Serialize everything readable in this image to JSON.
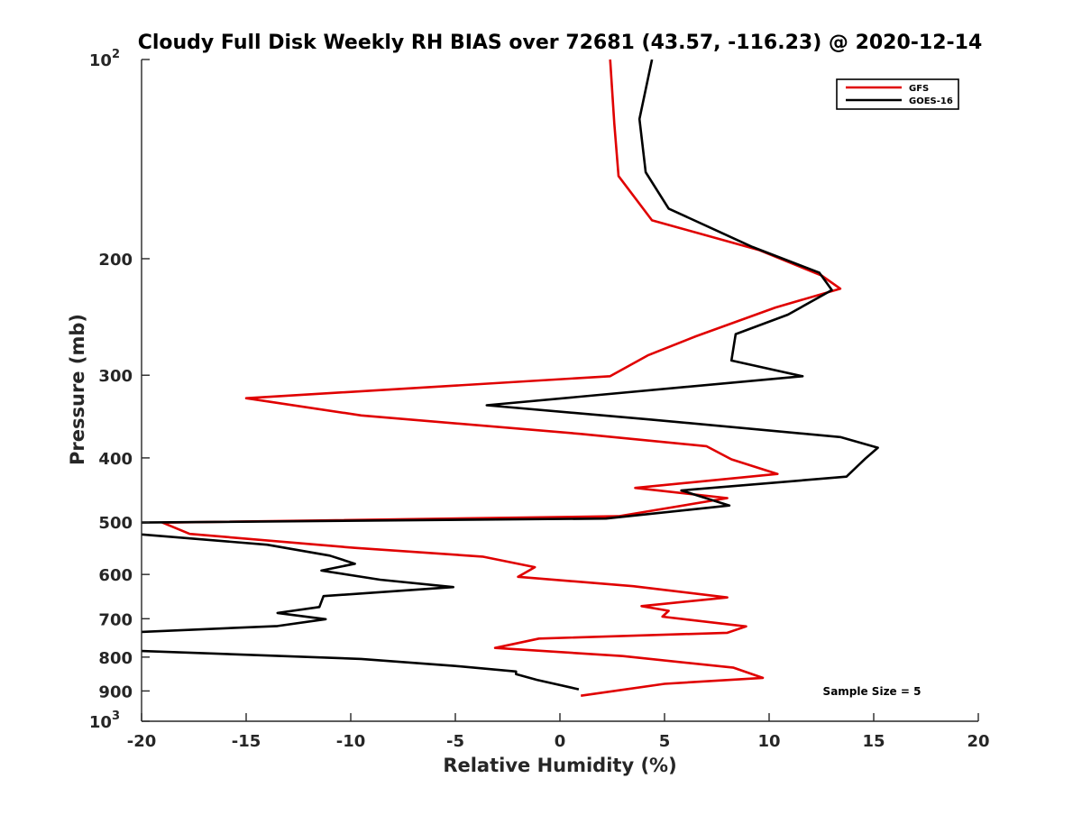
{
  "chart_data": {
    "type": "line",
    "title": "Cloudy Full Disk Weekly RH BIAS over 72681 (43.57, -116.23) @ 2020-12-14",
    "xlabel": "Relative Humidity (%)",
    "ylabel": "Pressure (mb)",
    "xlim": [
      -20,
      20
    ],
    "ylim": [
      100,
      1000
    ],
    "y_scale": "log",
    "y_reversed": true,
    "grid": false,
    "legend_position": "top-right",
    "x_ticks": [
      {
        "value": -20,
        "label": "-20"
      },
      {
        "value": -15,
        "label": "-15"
      },
      {
        "value": -10,
        "label": "-10"
      },
      {
        "value": -5,
        "label": "-5"
      },
      {
        "value": 0,
        "label": "0"
      },
      {
        "value": 5,
        "label": "5"
      },
      {
        "value": 10,
        "label": "10"
      },
      {
        "value": 15,
        "label": "15"
      },
      {
        "value": 20,
        "label": "20"
      }
    ],
    "y_ticks": [
      {
        "value": 100,
        "label": "10",
        "sup": "2"
      },
      {
        "value": 200,
        "label": "200"
      },
      {
        "value": 300,
        "label": "300"
      },
      {
        "value": 400,
        "label": "400"
      },
      {
        "value": 500,
        "label": "500"
      },
      {
        "value": 600,
        "label": "600"
      },
      {
        "value": 700,
        "label": "700"
      },
      {
        "value": 800,
        "label": "800"
      },
      {
        "value": 900,
        "label": "900"
      },
      {
        "value": 1000,
        "label": "10",
        "sup": "3"
      }
    ],
    "series": [
      {
        "name": "GFS",
        "color": "#e00000",
        "points": [
          [
            2.4,
            100
          ],
          [
            2.6,
            125
          ],
          [
            2.8,
            150
          ],
          [
            4.4,
            175
          ],
          [
            9.5,
            194
          ],
          [
            12.5,
            212
          ],
          [
            13.4,
            222
          ],
          [
            10.3,
            237
          ],
          [
            6.5,
            262
          ],
          [
            4.2,
            280
          ],
          [
            2.4,
            301
          ],
          [
            -15.0,
            325
          ],
          [
            -9.5,
            345
          ],
          [
            1.0,
            368
          ],
          [
            7.0,
            384
          ],
          [
            8.2,
            402
          ],
          [
            10.4,
            423
          ],
          [
            3.6,
            444
          ],
          [
            8.0,
            460
          ],
          [
            2.8,
            490
          ],
          [
            -19.0,
            501
          ],
          [
            -17.7,
            521
          ],
          [
            -9.8,
            547
          ],
          [
            -3.7,
            564
          ],
          [
            -1.2,
            585
          ],
          [
            -2.0,
            605
          ],
          [
            3.5,
            625
          ],
          [
            8.0,
            650
          ],
          [
            3.9,
            670
          ],
          [
            5.2,
            681
          ],
          [
            4.9,
            695
          ],
          [
            8.9,
            719
          ],
          [
            8.0,
            735
          ],
          [
            -1.0,
            750
          ],
          [
            -3.1,
            775
          ],
          [
            3.0,
            797
          ],
          [
            8.3,
            830
          ],
          [
            9.7,
            860
          ],
          [
            5.0,
            878
          ],
          [
            1.0,
            915
          ]
        ]
      },
      {
        "name": "GOES-16",
        "color": "#000000",
        "points": [
          [
            4.4,
            100
          ],
          [
            3.8,
            123
          ],
          [
            4.1,
            148
          ],
          [
            5.2,
            168
          ],
          [
            9.2,
            192
          ],
          [
            12.4,
            210
          ],
          [
            13.0,
            223
          ],
          [
            10.9,
            243
          ],
          [
            8.4,
            260
          ],
          [
            8.2,
            285
          ],
          [
            11.6,
            301
          ],
          [
            -3.5,
            333
          ],
          [
            4.3,
            350
          ],
          [
            13.4,
            372
          ],
          [
            15.2,
            386
          ],
          [
            14.6,
            401
          ],
          [
            13.7,
            427
          ],
          [
            5.8,
            448
          ],
          [
            8.1,
            472
          ],
          [
            2.2,
            494
          ],
          [
            -20.5,
            501
          ],
          [
            -20.0,
            522
          ],
          [
            -14.0,
            541
          ],
          [
            -11.0,
            562
          ],
          [
            -9.8,
            578
          ],
          [
            -11.4,
            592
          ],
          [
            -8.6,
            611
          ],
          [
            -5.1,
            627
          ],
          [
            -11.3,
            647
          ],
          [
            -11.5,
            672
          ],
          [
            -13.5,
            686
          ],
          [
            -11.2,
            701
          ],
          [
            -13.5,
            718
          ],
          [
            -20.5,
            734
          ],
          [
            -20.5,
            782
          ],
          [
            -9.5,
            805
          ],
          [
            -5.0,
            825
          ],
          [
            -2.1,
            841
          ],
          [
            -2.1,
            849
          ],
          [
            -1.1,
            866
          ],
          [
            0.9,
            895
          ]
        ]
      }
    ],
    "annotations": [
      {
        "text": "Sample Size = 5"
      }
    ]
  }
}
